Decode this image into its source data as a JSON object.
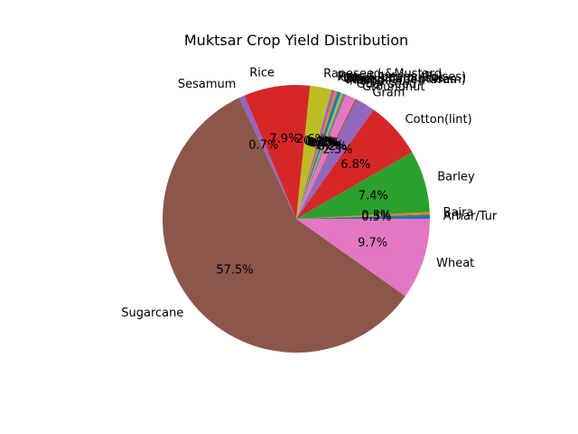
{
  "chart_data": {
    "type": "pie",
    "title": "Muktsar Crop Yield Distribution",
    "start_angle_deg": 0,
    "direction": "counterclockwise",
    "slices": [
      {
        "label": "Arhar/Tur",
        "pct_label": "0.5%",
        "value": 0.5,
        "color": "#1f77b4"
      },
      {
        "label": "Bajra",
        "pct_label": "0.3%",
        "value": 0.3,
        "color": "#ff7f0e"
      },
      {
        "label": "Barley",
        "pct_label": "7.4%",
        "value": 7.4,
        "color": "#2ca02c"
      },
      {
        "label": "Cotton(lint)",
        "pct_label": "6.8%",
        "value": 6.8,
        "color": "#d62728"
      },
      {
        "label": "Gram",
        "pct_label": "2.3%",
        "value": 2.3,
        "color": "#9467bd"
      },
      {
        "label": "Groundnut",
        "pct_label": "0.2%",
        "value": 0.2,
        "color": "#8c564b"
      },
      {
        "label": "Guar seed",
        "pct_label": "1.2%",
        "value": 1.2,
        "color": "#e377c2"
      },
      {
        "label": "Maize",
        "pct_label": "0.4%",
        "value": 0.4,
        "color": "#7f7f7f"
      },
      {
        "label": "Masoor",
        "pct_label": "0.2%",
        "value": 0.2,
        "color": "#bcbd22"
      },
      {
        "label": "Moong(Green Gram)",
        "pct_label": "0.1%",
        "value": 0.1,
        "color": "#17becf"
      },
      {
        "label": "Other Kharif pulses",
        "pct_label": "0.4%",
        "value": 0.4,
        "color": "#1f77b4"
      },
      {
        "label": "Other Rabi pulses",
        "pct_label": "0.3%",
        "value": 0.3,
        "color": "#ff7f0e"
      },
      {
        "label": "Peas & beans (Pulses)",
        "pct_label": "0.4%",
        "value": 0.4,
        "color": "#9467bd"
      },
      {
        "label": "Rapeseed &Mustard",
        "pct_label": "2.6%",
        "value": 2.6,
        "color": "#bcbd22"
      },
      {
        "label": "Rice",
        "pct_label": "7.9%",
        "value": 7.9,
        "color": "#d62728"
      },
      {
        "label": "Sesamum",
        "pct_label": "0.7%",
        "value": 0.7,
        "color": "#9467bd"
      },
      {
        "label": "Sugarcane",
        "pct_label": "57.5%",
        "value": 57.5,
        "color": "#8c564b"
      },
      {
        "label": "Wheat",
        "pct_label": "9.7%",
        "value": 9.7,
        "color": "#e377c2"
      }
    ],
    "legend": "none"
  }
}
